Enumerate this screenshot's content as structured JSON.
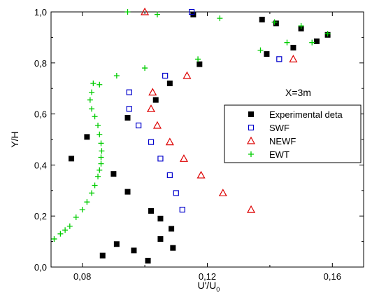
{
  "chart_data": {
    "type": "scatter",
    "xlabel": "U'/U",
    "xlabel_sub": "0",
    "ylabel": "Y/H",
    "xlim": [
      0.07,
      0.17
    ],
    "ylim": [
      0.0,
      1.0
    ],
    "xticks": [
      0.08,
      0.12,
      0.16
    ],
    "xtick_labels": [
      "0,08",
      "0,12",
      "0,16"
    ],
    "yticks": [
      0.0,
      0.2,
      0.4,
      0.6,
      0.8,
      1.0
    ],
    "ytick_labels": [
      "0,0",
      "0,2",
      "0,4",
      "0,6",
      "0,8",
      "1,0"
    ],
    "grid": false,
    "legend_position": "right",
    "annotation": "X=3m",
    "colors": {
      "black": "#000000",
      "blue": "#0000cc",
      "red": "#dd0000",
      "green": "#00cc00"
    },
    "series": [
      {
        "name": "Experimental deta",
        "marker": "filled-square",
        "color": "#000000",
        "points": [
          [
            0.0765,
            0.425
          ],
          [
            0.0815,
            0.51
          ],
          [
            0.0865,
            0.045
          ],
          [
            0.09,
            0.365
          ],
          [
            0.091,
            0.09
          ],
          [
            0.0945,
            0.585
          ],
          [
            0.0945,
            0.295
          ],
          [
            0.0965,
            0.065
          ],
          [
            0.101,
            0.025
          ],
          [
            0.102,
            0.22
          ],
          [
            0.1035,
            0.655
          ],
          [
            0.105,
            0.19
          ],
          [
            0.105,
            0.11
          ],
          [
            0.108,
            0.72
          ],
          [
            0.1085,
            0.15
          ],
          [
            0.109,
            0.075
          ],
          [
            0.1155,
            0.99
          ],
          [
            0.1175,
            0.795
          ],
          [
            0.1375,
            0.97
          ],
          [
            0.139,
            0.835
          ],
          [
            0.142,
            0.955
          ],
          [
            0.1475,
            0.86
          ],
          [
            0.15,
            0.935
          ],
          [
            0.155,
            0.885
          ],
          [
            0.1585,
            0.91
          ]
        ]
      },
      {
        "name": "SWF",
        "marker": "open-square",
        "color": "#0000cc",
        "points": [
          [
            0.095,
            0.685
          ],
          [
            0.095,
            0.62
          ],
          [
            0.098,
            0.555
          ],
          [
            0.102,
            0.49
          ],
          [
            0.105,
            0.425
          ],
          [
            0.1065,
            0.75
          ],
          [
            0.108,
            0.36
          ],
          [
            0.11,
            0.29
          ],
          [
            0.112,
            0.225
          ],
          [
            0.115,
            1.0
          ],
          [
            0.143,
            0.815
          ]
        ]
      },
      {
        "name": "NEWF",
        "marker": "open-triangle",
        "color": "#dd0000",
        "points": [
          [
            0.1,
            1.0
          ],
          [
            0.102,
            0.62
          ],
          [
            0.1025,
            0.685
          ],
          [
            0.104,
            0.555
          ],
          [
            0.108,
            0.49
          ],
          [
            0.1125,
            0.425
          ],
          [
            0.1135,
            0.75
          ],
          [
            0.118,
            0.36
          ],
          [
            0.125,
            0.29
          ],
          [
            0.134,
            0.225
          ],
          [
            0.1475,
            0.815
          ]
        ]
      },
      {
        "name": "EWT",
        "marker": "plus",
        "color": "#00cc00",
        "points": [
          [
            0.071,
            0.11
          ],
          [
            0.073,
            0.13
          ],
          [
            0.0745,
            0.145
          ],
          [
            0.076,
            0.16
          ],
          [
            0.078,
            0.195
          ],
          [
            0.08,
            0.225
          ],
          [
            0.0815,
            0.255
          ],
          [
            0.083,
            0.29
          ],
          [
            0.084,
            0.32
          ],
          [
            0.085,
            0.355
          ],
          [
            0.0855,
            0.38
          ],
          [
            0.086,
            0.405
          ],
          [
            0.086,
            0.43
          ],
          [
            0.0862,
            0.455
          ],
          [
            0.086,
            0.485
          ],
          [
            0.0855,
            0.52
          ],
          [
            0.085,
            0.555
          ],
          [
            0.084,
            0.59
          ],
          [
            0.083,
            0.62
          ],
          [
            0.0825,
            0.655
          ],
          [
            0.083,
            0.685
          ],
          [
            0.0835,
            0.72
          ],
          [
            0.0855,
            0.715
          ],
          [
            0.091,
            0.75
          ],
          [
            0.0945,
            1.0
          ],
          [
            0.1,
            0.78
          ],
          [
            0.104,
            0.99
          ],
          [
            0.117,
            0.815
          ],
          [
            0.124,
            0.975
          ],
          [
            0.137,
            0.85
          ],
          [
            0.1415,
            0.96
          ],
          [
            0.1455,
            0.88
          ],
          [
            0.15,
            0.945
          ],
          [
            0.1535,
            0.88
          ],
          [
            0.1585,
            0.915
          ]
        ]
      }
    ]
  }
}
